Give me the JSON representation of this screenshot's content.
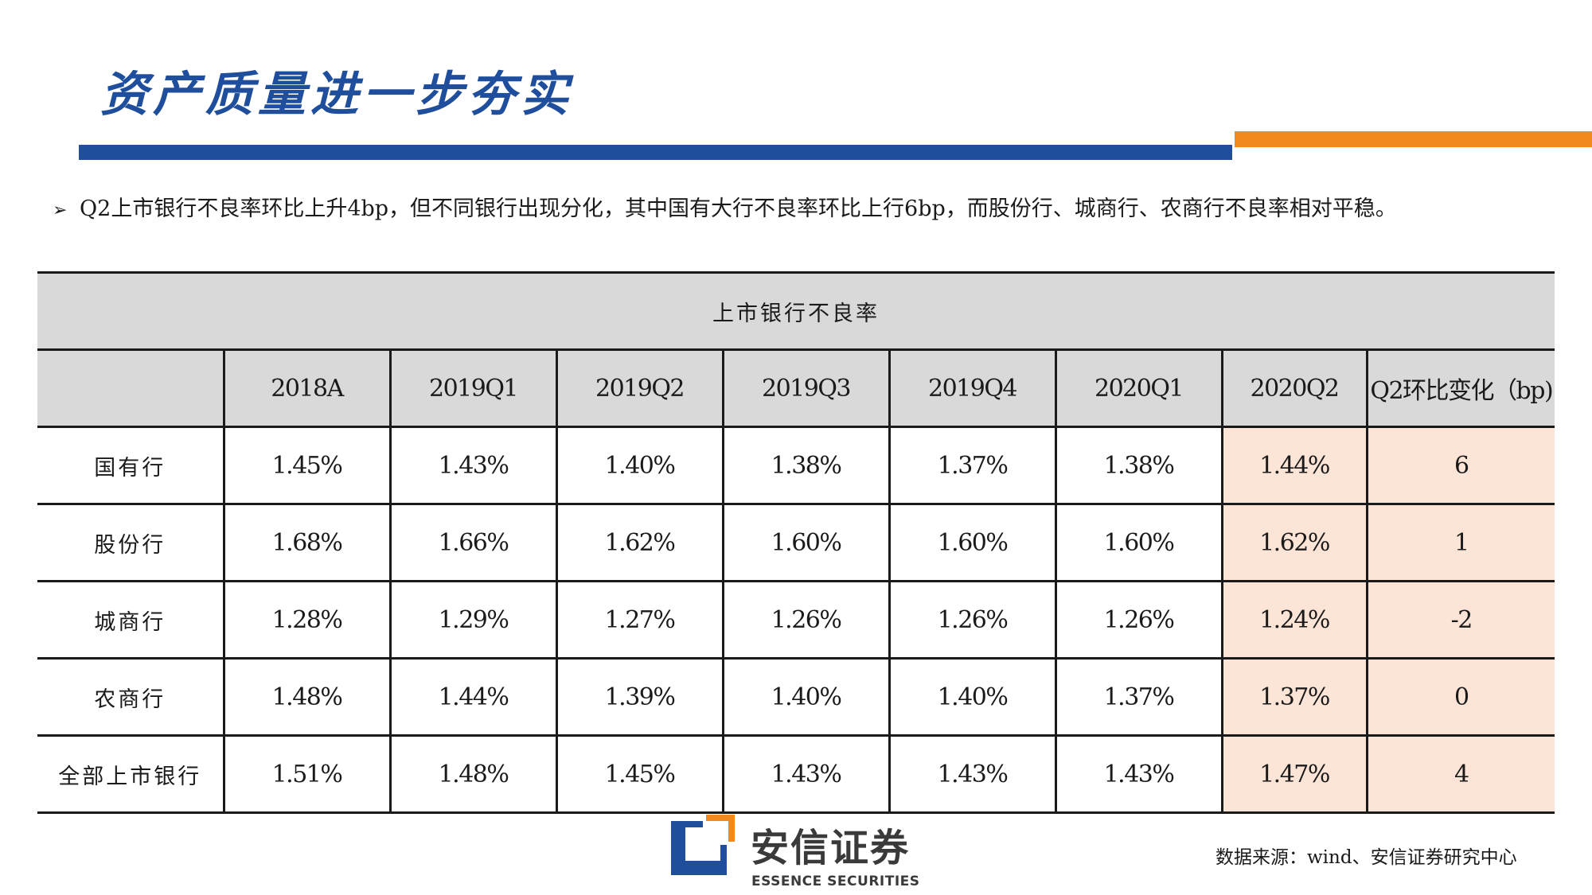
{
  "page": {
    "title": "资产质量进一步夯实",
    "bullet": "Q2上市银行不良率环比上升4bp，但不同银行出现分化，其中国有大行不良率环比上行6bp，而股份行、城商行、农商行不良率相对平稳。"
  },
  "table": {
    "caption": "上市银行不良率",
    "corner": "",
    "headers": [
      "2018A",
      "2019Q1",
      "2019Q2",
      "2019Q3",
      "2019Q4",
      "2020Q1",
      "2020Q2",
      "Q2环比变化（bp)"
    ],
    "rows": [
      {
        "label": "国有行",
        "values": [
          "1.45%",
          "1.43%",
          "1.40%",
          "1.38%",
          "1.37%",
          "1.38%",
          "1.44%",
          "6"
        ]
      },
      {
        "label": "股份行",
        "values": [
          "1.68%",
          "1.66%",
          "1.62%",
          "1.60%",
          "1.60%",
          "1.60%",
          "1.62%",
          "1"
        ]
      },
      {
        "label": "城商行",
        "values": [
          "1.28%",
          "1.29%",
          "1.27%",
          "1.26%",
          "1.26%",
          "1.26%",
          "1.24%",
          "-2"
        ]
      },
      {
        "label": "农商行",
        "values": [
          "1.48%",
          "1.44%",
          "1.39%",
          "1.40%",
          "1.40%",
          "1.37%",
          "1.37%",
          "0"
        ]
      },
      {
        "label": "全部上市银行",
        "values": [
          "1.51%",
          "1.48%",
          "1.45%",
          "1.43%",
          "1.43%",
          "1.43%",
          "1.47%",
          "4"
        ]
      }
    ]
  },
  "logo": {
    "name_cn": "安信证券",
    "name_en": "ESSENCE SECURITIES"
  },
  "footer": {
    "source": "数据来源：wind、安信证券研究中心"
  },
  "colors": {
    "title_blue": "#1f4e9c",
    "accent_orange": "#f08a1c",
    "header_gray": "#d9d9d9",
    "highlight_peach": "#fce4d6"
  }
}
